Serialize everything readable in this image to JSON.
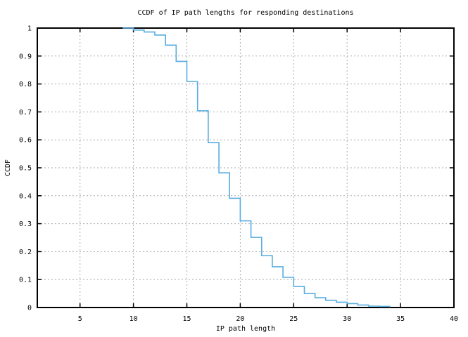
{
  "chart_data": {
    "type": "line",
    "style": "steps",
    "title": "CCDF of IP path lengths for responding destinations",
    "xlabel": "IP path length",
    "ylabel": "CCDF",
    "xlim": [
      1,
      40
    ],
    "ylim": [
      0,
      1
    ],
    "xticks": [
      5,
      10,
      15,
      20,
      25,
      30,
      35,
      40
    ],
    "yticks": [
      0,
      0.1,
      0.2,
      0.3,
      0.4,
      0.5,
      0.6,
      0.7,
      0.8,
      0.9,
      1
    ],
    "ytick_labels": [
      "0",
      "0.1",
      "0.2",
      "0.3",
      "0.4",
      "0.5",
      "0.6",
      "0.7",
      "0.8",
      "0.9",
      "1"
    ],
    "grid": true,
    "legend": "none",
    "series": [
      {
        "name": "CCDF of IP path length",
        "color": "#57ade2",
        "x": [
          9,
          10,
          11,
          12,
          13,
          14,
          15,
          16,
          17,
          18,
          19,
          20,
          21,
          22,
          23,
          24,
          25,
          26,
          27,
          28,
          29,
          30,
          31,
          32,
          33,
          34
        ],
        "y": [
          1.0,
          0.993,
          0.986,
          0.975,
          0.939,
          0.881,
          0.809,
          0.704,
          0.59,
          0.482,
          0.391,
          0.31,
          0.251,
          0.186,
          0.146,
          0.108,
          0.075,
          0.05,
          0.035,
          0.026,
          0.019,
          0.014,
          0.009,
          0.005,
          0.004,
          0.001
        ]
      }
    ]
  },
  "colors": {
    "line": "#57ade2",
    "grid": "#ababab",
    "axis": "#000000",
    "text": "#000000",
    "background": "#ffffff"
  }
}
